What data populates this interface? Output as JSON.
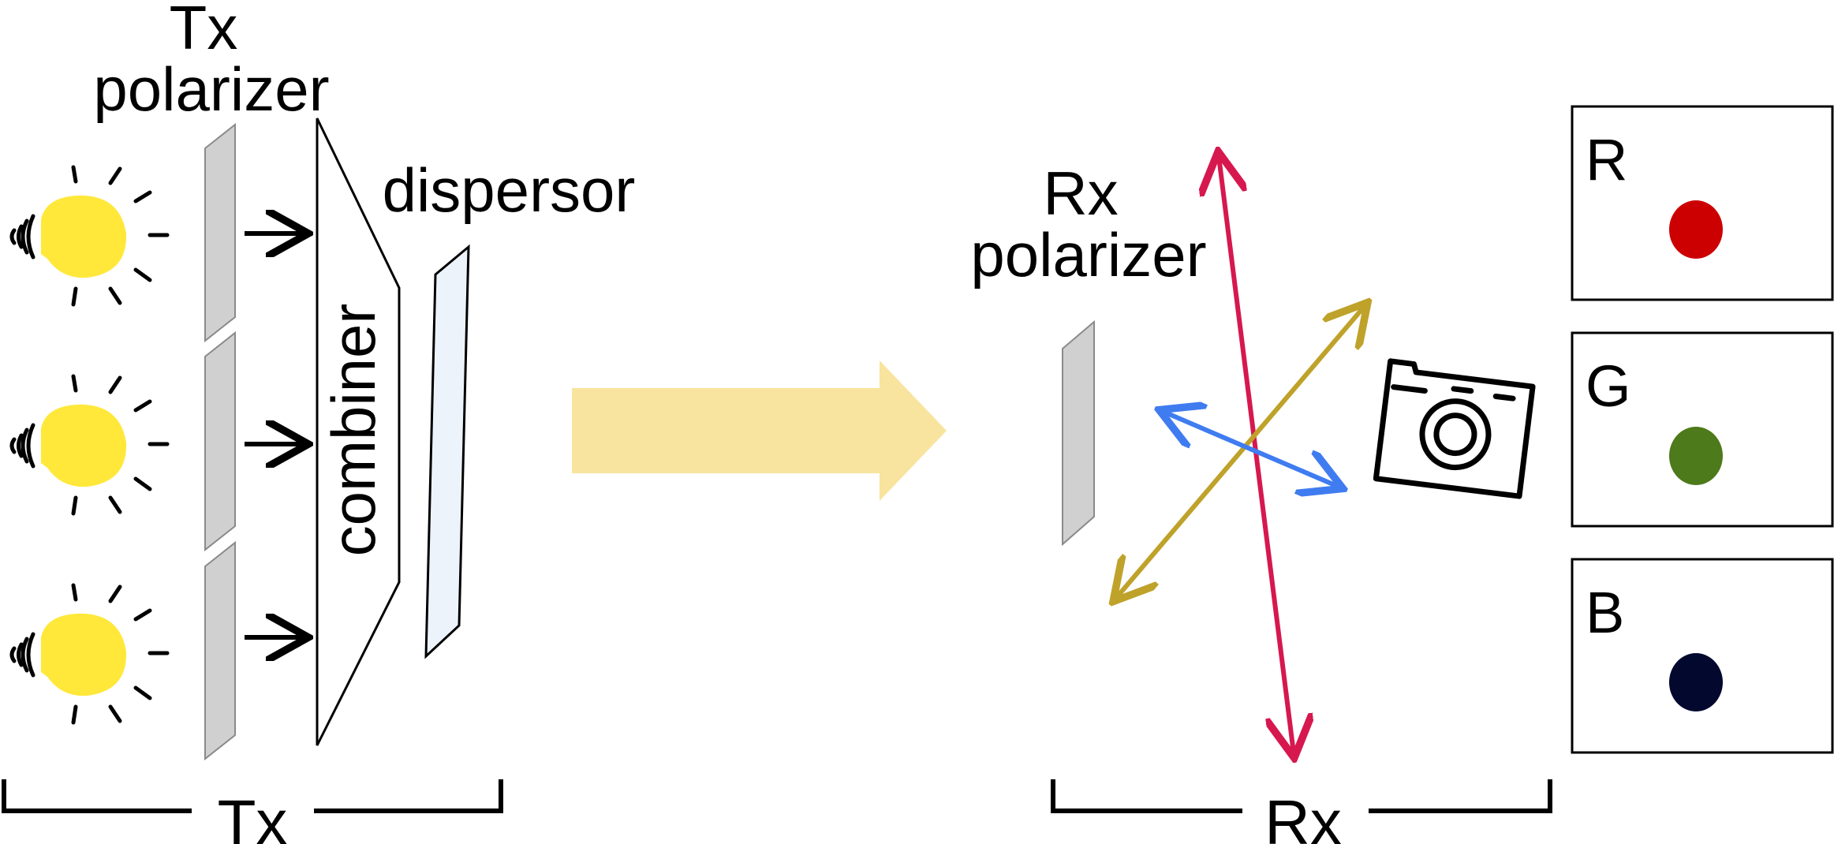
{
  "tx": {
    "polarizer_label_line1": "Tx",
    "polarizer_label_line2": "polarizer",
    "combiner_label": "combiner",
    "dispersor_label": "dispersor",
    "section_label": "Tx",
    "bulb_count": 3
  },
  "rx": {
    "polarizer_label_line1": "Rx",
    "polarizer_label_line2": "polarizer",
    "section_label": "Rx"
  },
  "polarization_arrows": [
    {
      "name": "red",
      "color": "#d6184f"
    },
    {
      "name": "yellow",
      "color": "#bfa22a"
    },
    {
      "name": "blue",
      "color": "#3f7cf0"
    }
  ],
  "channels": [
    {
      "label": "R",
      "dot_color": "#cc0000"
    },
    {
      "label": "G",
      "dot_color": "#4d7a1a"
    },
    {
      "label": "B",
      "dot_color": "#03082e"
    }
  ],
  "colors": {
    "bulb": "#ffe83a",
    "polarizer_fill": "#d0d0d0",
    "dispersor_fill": "#edf3fb",
    "big_arrow": "#f8e49e"
  },
  "icons": [
    "light-bulb-icon",
    "camera-icon"
  ]
}
